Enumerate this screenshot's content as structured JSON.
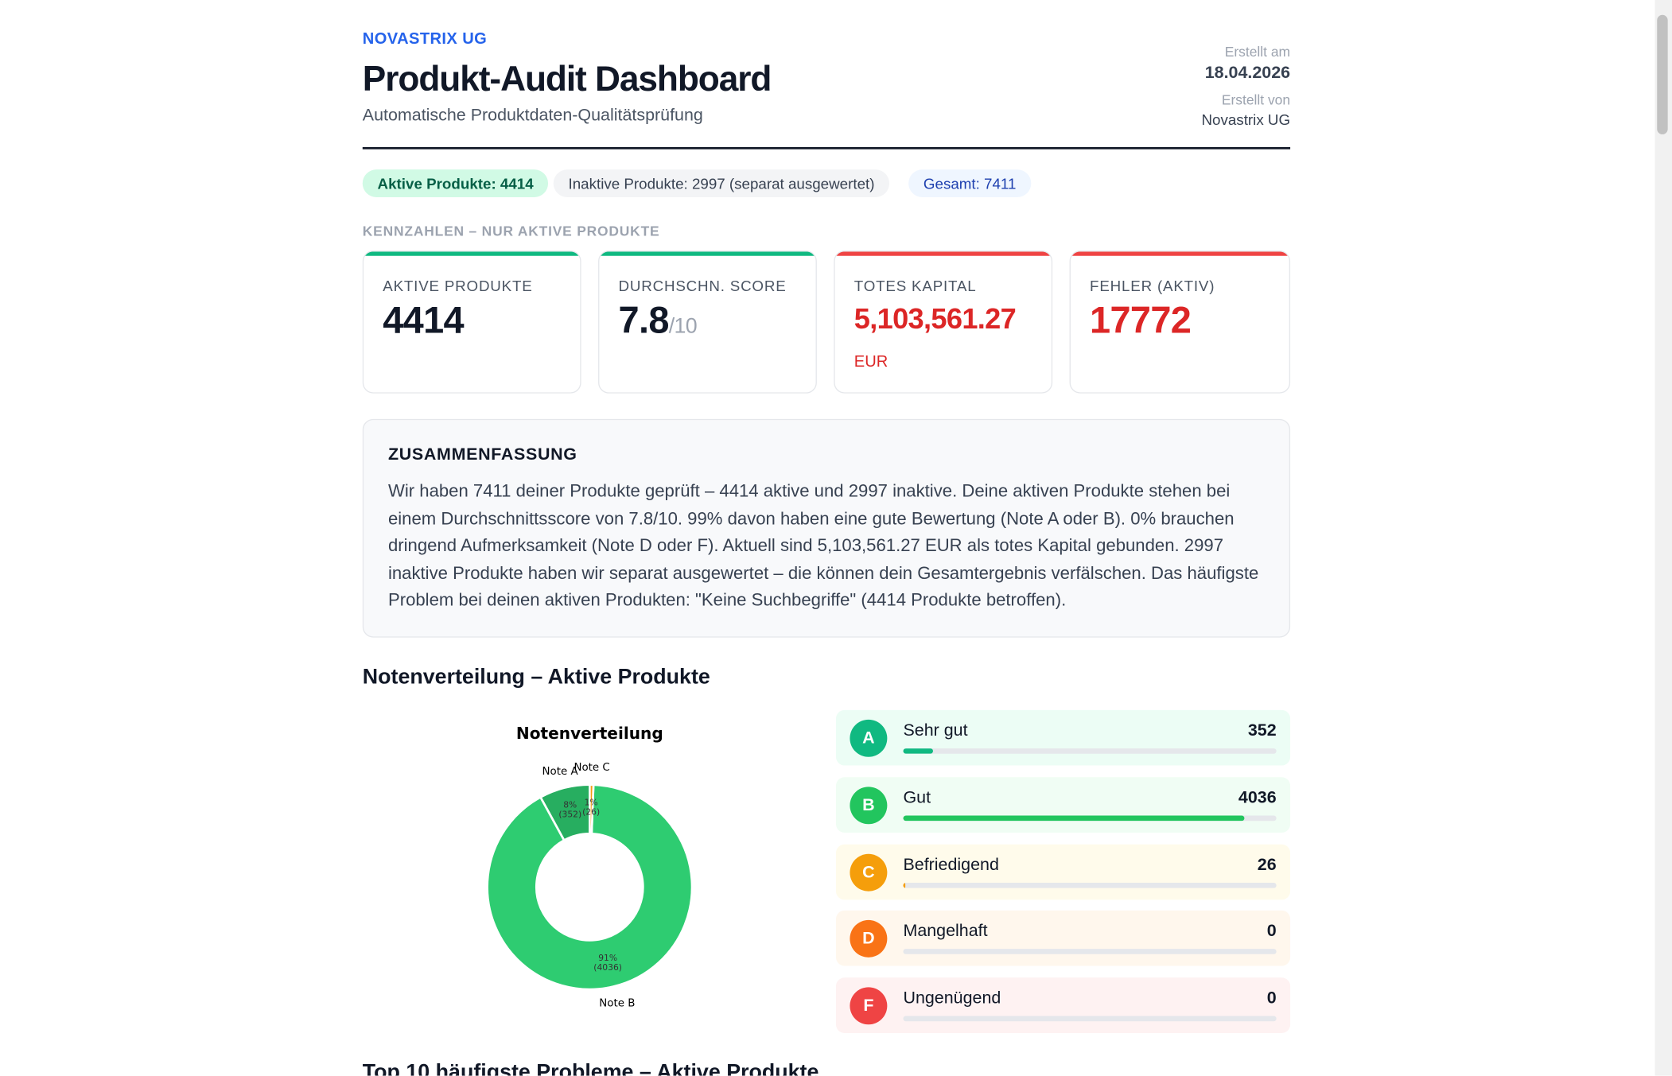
{
  "header": {
    "company": "NOVASTRIX UG",
    "title": "Produkt-Audit Dashboard",
    "subtitle": "Automatische Produktdaten-Qualitätsprüfung",
    "created_label": "Erstellt am",
    "created_date": "18.04.2026",
    "author_label": "Erstellt von",
    "author": "Novastrix UG"
  },
  "pills": [
    "Aktive Produkte: 4414",
    "Inaktive Produkte: 2997 (separat ausgewertet)",
    "Gesamt: 7411"
  ],
  "kpi_section": "KENNZAHLEN – NUR AKTIVE PRODUKTE",
  "kpis": [
    {
      "label": "AKTIVE PRODUKTE",
      "value": 4414
    },
    {
      "label": "DURCHSCHN. SCORE",
      "value": 7.8,
      "suffix": "/10"
    },
    {
      "label": "TOTES KAPITAL",
      "value": "5,103,561.27",
      "unit": "EUR"
    },
    {
      "label": "FEHLER (AKTIV)",
      "value": 17772
    }
  ],
  "summary": {
    "heading": "ZUSAMMENFASSUNG",
    "text": "Wir haben 7411 deiner Produkte geprüft – 4414 aktive und 2997 inaktive. Deine aktiven Produkte stehen bei einem Durchschnittsscore von 7.8/10. 99% davon haben eine gute Bewertung (Note A oder B). 0% brauchen dringend Aufmerksamkeit (Note D oder F). Aktuell sind 5,103,561.27 EUR als totes Kapital gebunden. 2997 inaktive Produkte haben wir separat ausgewertet – die können dein Gesamtergebnis verfälschen. Das häufigste Problem bei deinen aktiven Produkten: \"Keine Suchbegriffe\" (4414 Produkte betroffen)."
  },
  "grades_heading": "Notenverteilung – Aktive Produkte",
  "donut": {
    "type": "pie",
    "title": "Notenverteilung",
    "categories": [
      "Note A",
      "Note B",
      "Note C"
    ],
    "values": [
      352,
      4036,
      26
    ],
    "percent_labels": [
      "8%",
      "91%",
      "1%"
    ],
    "value_labels": [
      "(352)",
      "(4036)",
      "(26)"
    ],
    "colors": [
      "#27ae60",
      "#2ecc71",
      "#f39c12"
    ]
  },
  "grades": [
    {
      "letter": "A",
      "name": "Sehr gut",
      "count": 352,
      "color": "#10b981",
      "background": "#ecfdf5"
    },
    {
      "letter": "B",
      "name": "Gut",
      "count": 4036,
      "color": "#22c55e",
      "background": "#f0fdf4"
    },
    {
      "letter": "C",
      "name": "Befriedigend",
      "count": 26,
      "color": "#f59e0b",
      "background": "#fffbeb"
    },
    {
      "letter": "D",
      "name": "Mangelhaft",
      "count": 0,
      "color": "#f97316",
      "background": "#fff7ed"
    },
    {
      "letter": "F",
      "name": "Ungenügend",
      "count": 0,
      "color": "#ef4444",
      "background": "#fef2f2"
    }
  ],
  "problems_heading": "Top 10 häufigste Probleme – Aktive Produkte"
}
